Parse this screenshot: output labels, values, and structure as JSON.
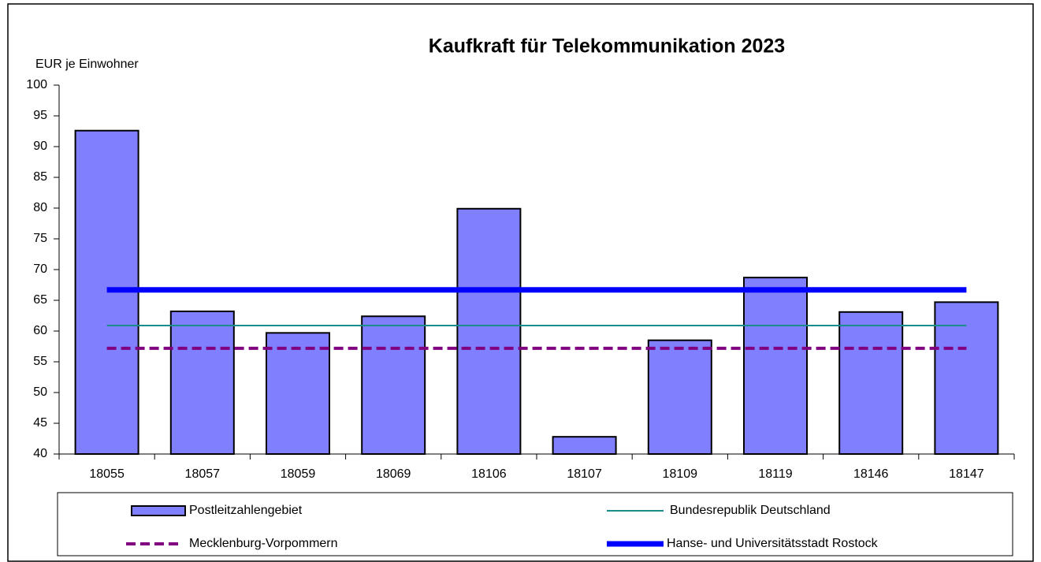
{
  "chart_data": {
    "type": "bar",
    "title": "Kaufkraft für Telekommunikation 2023",
    "y_label": "EUR je Einwohner",
    "categories": [
      "18055",
      "18057",
      "18059",
      "18069",
      "18106",
      "18107",
      "18109",
      "18119",
      "18146",
      "18147"
    ],
    "series": [
      {
        "name": "Postleitzahlengebiet",
        "type": "bar",
        "color": "#8080ff",
        "values": [
          92.6,
          63.2,
          59.7,
          62.4,
          79.9,
          42.8,
          58.5,
          68.7,
          63.1,
          64.7
        ]
      },
      {
        "name": "Bundesrepublik Deutschland",
        "type": "line",
        "color": "#1a8c8c",
        "width": 2,
        "dashed": false,
        "values": [
          60.9,
          60.9,
          60.9,
          60.9,
          60.9,
          60.9,
          60.9,
          60.9,
          60.9,
          60.9
        ]
      },
      {
        "name": "Mecklenburg-Vorpommern",
        "type": "line",
        "color": "#800080",
        "width": 4,
        "dashed": true,
        "values": [
          57.2,
          57.2,
          57.2,
          57.2,
          57.2,
          57.2,
          57.2,
          57.2,
          57.2,
          57.2
        ]
      },
      {
        "name": "Hanse- und Universitätsstadt Rostock",
        "type": "line",
        "color": "#0000ff",
        "width": 7,
        "dashed": false,
        "values": [
          66.7,
          66.7,
          66.7,
          66.7,
          66.7,
          66.7,
          66.7,
          66.7,
          66.7,
          66.7
        ]
      }
    ],
    "ylim": [
      40,
      100
    ],
    "yticks": [
      40,
      45,
      50,
      55,
      60,
      65,
      70,
      75,
      80,
      85,
      90,
      95,
      100
    ],
    "grid": false
  }
}
